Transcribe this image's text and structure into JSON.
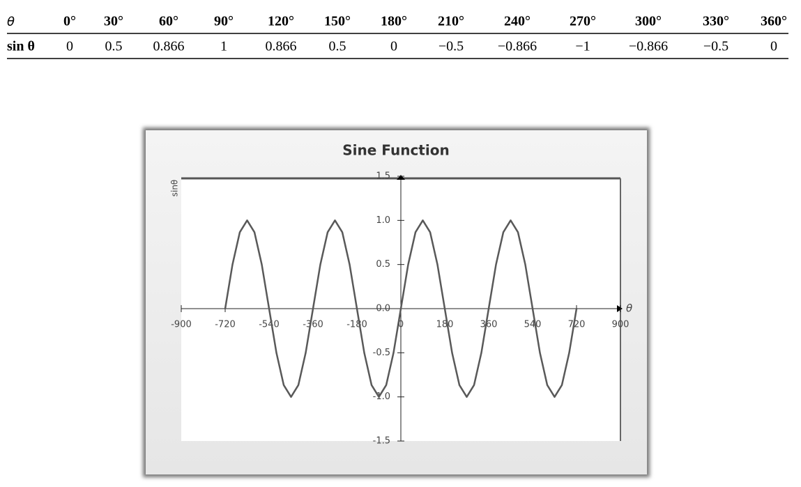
{
  "table": {
    "rows": [
      [
        "θ",
        "0°",
        "30°",
        "60°",
        "90°",
        "120°",
        "150°",
        "180°",
        "210°",
        "240°",
        "270°",
        "300°",
        "330°",
        "360°"
      ],
      [
        "sin θ",
        "0",
        "0.5",
        "0.866",
        "1",
        "0.866",
        "0.5",
        "0",
        "−0.5",
        "−0.866",
        "−1",
        "−0.866",
        "−0.5",
        "0"
      ]
    ]
  },
  "chart_data": {
    "type": "line",
    "title": "Sine Function",
    "y_label": "sinθ",
    "x_label": "θ",
    "color": "#595959",
    "x": [
      -720,
      -690,
      -660,
      -630,
      -600,
      -570,
      -540,
      -510,
      -480,
      -450,
      -420,
      -390,
      -360,
      -330,
      -300,
      -270,
      -240,
      -210,
      -180,
      -150,
      -120,
      -90,
      -60,
      -30,
      0,
      30,
      60,
      90,
      120,
      150,
      180,
      210,
      240,
      270,
      300,
      330,
      360,
      390,
      420,
      450,
      480,
      510,
      540,
      570,
      600,
      630,
      660,
      690,
      720
    ],
    "values": [
      0,
      0.5,
      0.866,
      1,
      0.866,
      0.5,
      0,
      -0.5,
      -0.866,
      -1,
      -0.866,
      -0.5,
      0,
      0.5,
      0.866,
      1,
      0.866,
      0.5,
      0,
      -0.5,
      -0.866,
      -1,
      -0.866,
      -0.5,
      0,
      0.5,
      0.866,
      1,
      0.866,
      0.5,
      0,
      -0.5,
      -0.866,
      -1,
      -0.866,
      -0.5,
      0,
      0.5,
      0.866,
      1,
      0.866,
      0.5,
      0,
      -0.5,
      -0.866,
      -1,
      -0.866,
      -0.5,
      0
    ],
    "xlim": [
      -900,
      900
    ],
    "xticks": [
      -900,
      -720,
      -540,
      -360,
      -180,
      0,
      180,
      360,
      540,
      720,
      900
    ],
    "ylim": [
      -1.5,
      1.5
    ],
    "yticks": [
      {
        "value": -1.5,
        "label": "-1.5"
      },
      {
        "value": -1,
        "label": "-1.0"
      },
      {
        "value": -0.5,
        "label": "-0.5"
      },
      {
        "value": 0,
        "label": "0.0"
      },
      {
        "value": 0.5,
        "label": "0.5"
      },
      {
        "value": 1,
        "label": "1.0"
      },
      {
        "value": 1.5,
        "label": "1.5"
      }
    ]
  }
}
